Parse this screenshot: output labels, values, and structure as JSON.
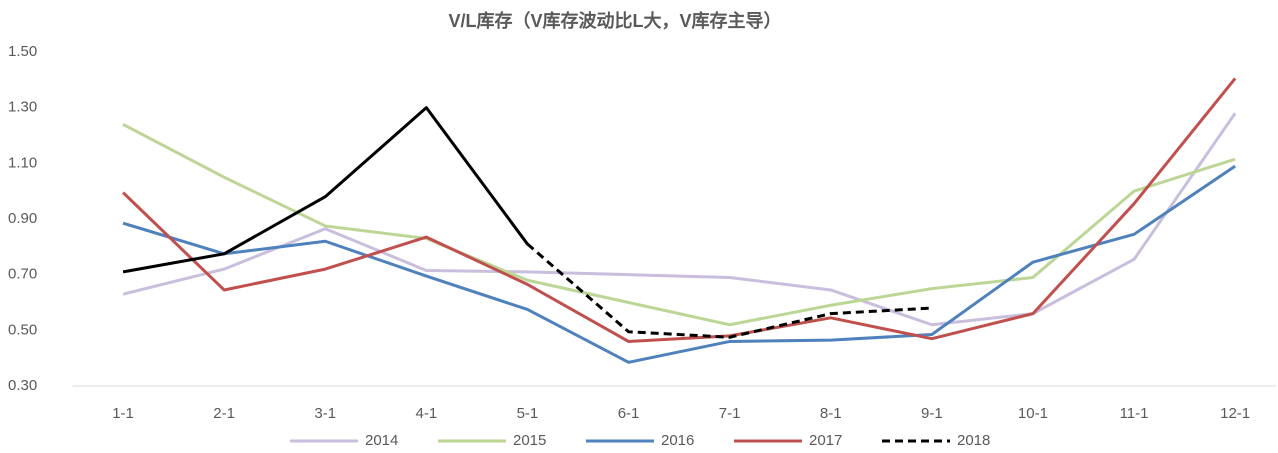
{
  "chart_data": {
    "type": "line",
    "title": "V/L库存（V库存波动比L大，V库存主导）",
    "categories": [
      "1-1",
      "2-1",
      "3-1",
      "4-1",
      "5-1",
      "6-1",
      "7-1",
      "8-1",
      "9-1",
      "10-1",
      "11-1",
      "12-1"
    ],
    "series": [
      {
        "name": "2014",
        "color": "#c9bedd",
        "values": [
          0.63,
          0.72,
          0.865,
          0.715,
          0.71,
          0.7,
          0.69,
          0.645,
          0.52,
          0.56,
          0.755,
          1.28
        ]
      },
      {
        "name": "2015",
        "color": "#bcd795",
        "values": [
          1.24,
          1.05,
          0.875,
          0.83,
          0.68,
          0.6,
          0.52,
          0.59,
          0.65,
          0.69,
          1.0,
          1.115
        ]
      },
      {
        "name": "2016",
        "color": "#4f81bd",
        "values": [
          0.885,
          0.775,
          0.82,
          0.695,
          0.575,
          0.385,
          0.46,
          0.465,
          0.485,
          0.745,
          0.845,
          1.09
        ]
      },
      {
        "name": "2017",
        "color": "#c0504d",
        "values": [
          0.995,
          0.645,
          0.72,
          0.835,
          0.665,
          0.46,
          0.48,
          0.545,
          0.47,
          0.56,
          0.955,
          1.405
        ]
      },
      {
        "name": "2018",
        "color": "#000000",
        "dash_start": 4,
        "values": [
          0.71,
          0.775,
          0.98,
          1.3,
          0.81,
          0.495,
          0.475,
          0.56,
          0.58,
          null,
          null,
          null
        ]
      }
    ],
    "ylim": [
      0.3,
      1.5
    ],
    "yticks": [
      {
        "value": 0.3,
        "label": "0.30"
      },
      {
        "value": 0.5,
        "label": "0.50"
      },
      {
        "value": 0.7,
        "label": "0.70"
      },
      {
        "value": 0.9,
        "label": "0.90"
      },
      {
        "value": 1.1,
        "label": "1.10"
      },
      {
        "value": 1.3,
        "label": "1.30"
      },
      {
        "value": 1.5,
        "label": "1.50"
      }
    ],
    "grid": false,
    "legend": "bottom"
  }
}
